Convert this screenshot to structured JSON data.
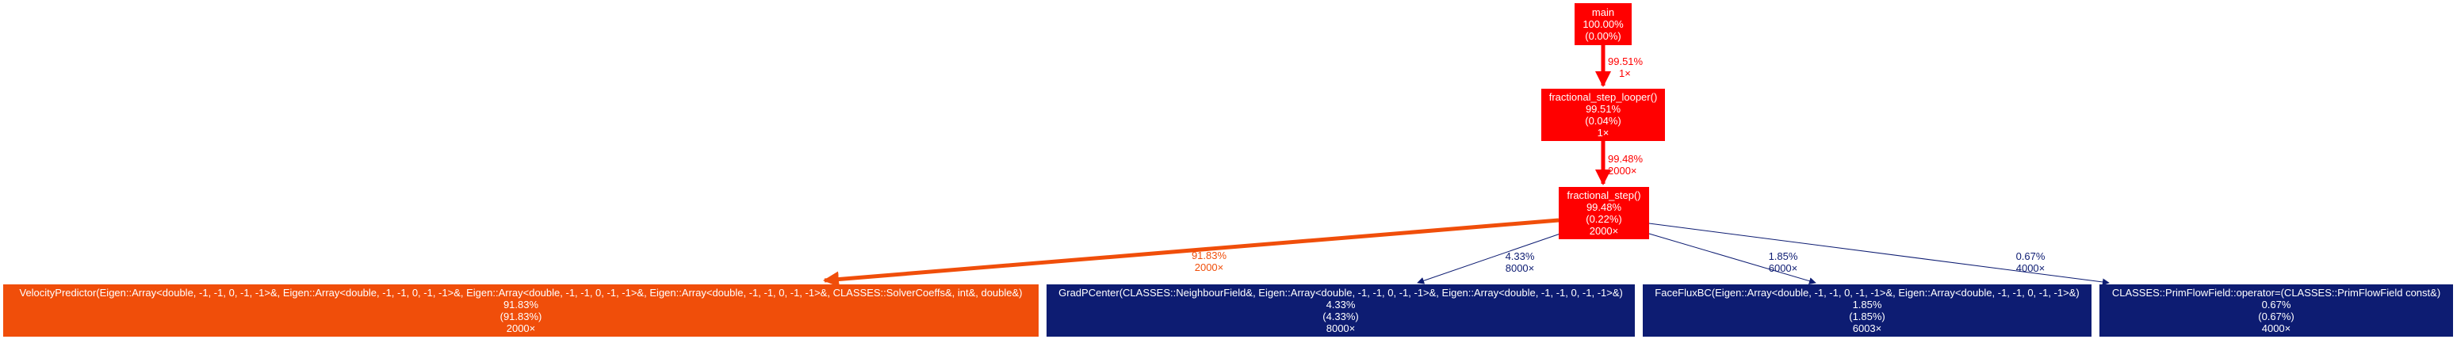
{
  "colors": {
    "hot": "#ff0000",
    "warm": "#f04e0a",
    "cold": "#0d1c72",
    "text_on_node": "#ffffff"
  },
  "nodes": {
    "main": {
      "name": "main",
      "total": "100.00%",
      "self": "(0.00%)",
      "calls": "",
      "color": "#ff0000"
    },
    "looper": {
      "name": "fractional_step_looper()",
      "total": "99.51%",
      "self": "(0.04%)",
      "calls": "1×",
      "color": "#ff0000"
    },
    "step": {
      "name": "fractional_step()",
      "total": "99.48%",
      "self": "(0.22%)",
      "calls": "2000×",
      "color": "#ff0000"
    },
    "velocity": {
      "name": "VelocityPredictor(Eigen::Array<double, -1, -1, 0, -1, -1>&, Eigen::Array<double, -1, -1, 0, -1, -1>&, Eigen::Array<double, -1, -1, 0, -1, -1>&, Eigen::Array<double, -1, -1, 0, -1, -1>&, CLASSES::SolverCoeffs&, int&, double&)",
      "total": "91.83%",
      "self": "(91.83%)",
      "calls": "2000×",
      "color": "#f04e0a"
    },
    "gradp": {
      "name": "GradPCenter(CLASSES::NeighbourField&, Eigen::Array<double, -1, -1, 0, -1, -1>&, Eigen::Array<double, -1, -1, 0, -1, -1>&)",
      "total": "4.33%",
      "self": "(4.33%)",
      "calls": "8000×",
      "color": "#0d1c72"
    },
    "faceflux": {
      "name": "FaceFluxBC(Eigen::Array<double, -1, -1, 0, -1, -1>&, Eigen::Array<double, -1, -1, 0, -1, -1>&)",
      "total": "1.85%",
      "self": "(1.85%)",
      "calls": "6003×",
      "color": "#0d1c72"
    },
    "primflow": {
      "name": "CLASSES::PrimFlowField::operator=(CLASSES::PrimFlowField const&)",
      "total": "0.67%",
      "self": "(0.67%)",
      "calls": "4000×",
      "color": "#0d1c72"
    }
  },
  "edges": {
    "main_looper": {
      "pct": "99.51%",
      "calls": "1×",
      "color": "#ff0000",
      "weight": 0.9951
    },
    "looper_step": {
      "pct": "99.48%",
      "calls": "2000×",
      "color": "#ff0000",
      "weight": 0.9948
    },
    "step_velocity": {
      "pct": "91.83%",
      "calls": "2000×",
      "color": "#f04e0a",
      "weight": 0.9183
    },
    "step_gradp": {
      "pct": "4.33%",
      "calls": "8000×",
      "color": "#0d1c72",
      "weight": 0.0433
    },
    "step_faceflux": {
      "pct": "1.85%",
      "calls": "6000×",
      "color": "#0d1c72",
      "weight": 0.0185
    },
    "step_primflow": {
      "pct": "0.67%",
      "calls": "4000×",
      "color": "#0d1c72",
      "weight": 0.0067
    }
  }
}
